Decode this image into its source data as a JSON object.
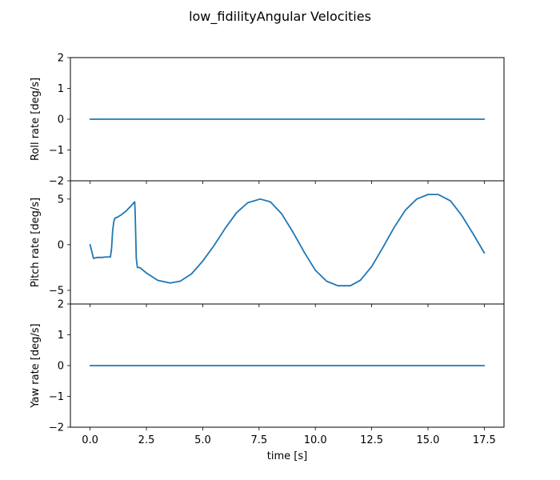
{
  "figure": {
    "title": "low_fidilityAngular Velocities"
  },
  "chart_data": [
    {
      "type": "line",
      "title": "",
      "xlabel": "",
      "ylabel": "Roll rate [deg/s]",
      "xlim": [
        -0.875,
        18.375
      ],
      "ylim": [
        -2,
        2
      ],
      "yticks": [
        -2,
        -1,
        0,
        1,
        2
      ],
      "xticks": [
        0,
        2.5,
        5,
        7.5,
        10,
        12.5,
        15,
        17.5
      ],
      "show_xtick_labels": false,
      "grid": false,
      "color": "#1f77b4",
      "x": [
        0,
        17.5
      ],
      "y": [
        0,
        0
      ]
    },
    {
      "type": "line",
      "title": "",
      "xlabel": "",
      "ylabel": "Pitch rate [deg/s]",
      "xlim": [
        -0.875,
        18.375
      ],
      "ylim": [
        -6.5,
        7.0
      ],
      "yticks": [
        -5,
        0,
        5
      ],
      "xticks": [
        0,
        2.5,
        5,
        7.5,
        10,
        12.5,
        15,
        17.5
      ],
      "show_xtick_labels": false,
      "grid": false,
      "color": "#1f77b4",
      "x": [
        0,
        0.05,
        0.15,
        0.3,
        0.5,
        0.7,
        0.9,
        0.95,
        1.0,
        1.05,
        1.1,
        1.2,
        1.4,
        1.6,
        1.8,
        1.98,
        2.0,
        2.05,
        2.1,
        2.2,
        2.5,
        3.0,
        3.55,
        4.0,
        4.5,
        5.0,
        5.5,
        6.0,
        6.5,
        7.0,
        7.55,
        8.0,
        8.5,
        9.0,
        9.5,
        10.0,
        10.5,
        11.0,
        11.55,
        12.0,
        12.5,
        13.0,
        13.5,
        14.0,
        14.5,
        15.0,
        15.45,
        16.0,
        16.5,
        17.0,
        17.5
      ],
      "y": [
        0,
        -0.5,
        -1.5,
        -1.4,
        -1.4,
        -1.35,
        -1.35,
        -0.5,
        1.5,
        2.5,
        2.9,
        3.0,
        3.3,
        3.7,
        4.2,
        4.7,
        3.5,
        -1.5,
        -2.5,
        -2.5,
        -3.1,
        -3.9,
        -4.2,
        -4.0,
        -3.2,
        -1.8,
        -0.1,
        1.8,
        3.5,
        4.6,
        5.0,
        4.7,
        3.4,
        1.4,
        -0.8,
        -2.8,
        -4.0,
        -4.5,
        -4.5,
        -3.9,
        -2.4,
        -0.3,
        1.9,
        3.8,
        5.0,
        5.5,
        5.5,
        4.8,
        3.2,
        1.2,
        -0.9
      ]
    },
    {
      "type": "line",
      "title": "",
      "xlabel": "time [s]",
      "ylabel": "Yaw rate [deg/s]",
      "xlim": [
        -0.875,
        18.375
      ],
      "ylim": [
        -2,
        2
      ],
      "yticks": [
        -2,
        -1,
        0,
        1,
        2
      ],
      "xticks": [
        0,
        2.5,
        5,
        7.5,
        10,
        12.5,
        15,
        17.5
      ],
      "xtick_labels": [
        "0.0",
        "2.5",
        "5.0",
        "7.5",
        "10.0",
        "12.5",
        "15.0",
        "17.5"
      ],
      "show_xtick_labels": true,
      "grid": false,
      "color": "#1f77b4",
      "x": [
        0,
        17.5
      ],
      "y": [
        0,
        0
      ]
    }
  ]
}
